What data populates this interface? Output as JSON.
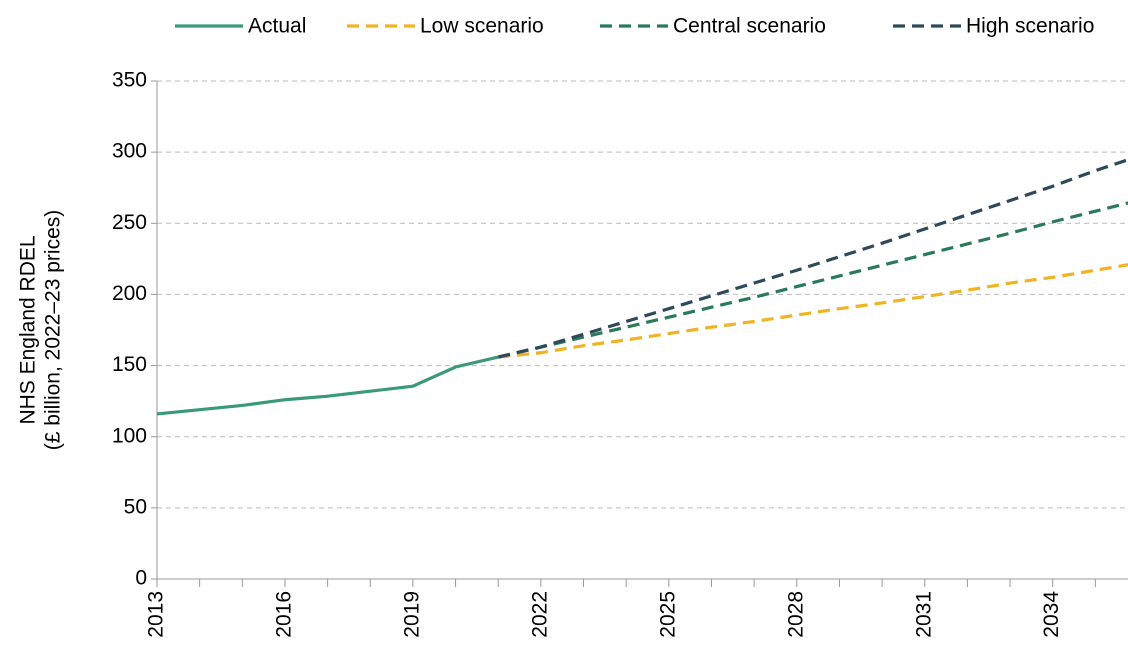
{
  "chart_data": {
    "type": "line",
    "y_axis_label": [
      "NHS England RDEL",
      "(£ billion, 2022–23 prices)"
    ],
    "x": [
      2013,
      2014,
      2015,
      2016,
      2017,
      2018,
      2019,
      2020,
      2021,
      2022,
      2023,
      2024,
      2025,
      2026,
      2027,
      2028,
      2029,
      2030,
      2031,
      2032,
      2033,
      2034,
      2035,
      2036
    ],
    "series": [
      {
        "name": "Actual",
        "color": "#3a9a78",
        "dash": false,
        "values": [
          116,
          119,
          122,
          126,
          128.5,
          132,
          135.5,
          149,
          156,
          null,
          null,
          null,
          null,
          null,
          null,
          null,
          null,
          null,
          null,
          null,
          null,
          null,
          null,
          null
        ]
      },
      {
        "name": "Low scenario",
        "color": "#f0b323",
        "dash": true,
        "values": [
          null,
          null,
          null,
          null,
          null,
          null,
          null,
          null,
          156,
          159,
          164,
          168,
          172.5,
          177,
          181,
          185.5,
          190,
          194,
          198.5,
          203,
          208,
          212,
          217,
          222
        ]
      },
      {
        "name": "Central scenario",
        "color": "#2a7a5a",
        "dash": true,
        "values": [
          null,
          null,
          null,
          null,
          null,
          null,
          null,
          null,
          156,
          163,
          170,
          177,
          184,
          191,
          198,
          205.5,
          213,
          220.5,
          228,
          235.5,
          243,
          251,
          258.5,
          266
        ]
      },
      {
        "name": "High scenario",
        "color": "#2e4a5a",
        "dash": true,
        "values": [
          null,
          null,
          null,
          null,
          null,
          null,
          null,
          null,
          156,
          163,
          172,
          181,
          190,
          199,
          208,
          217,
          226.5,
          236,
          246,
          256,
          266,
          276,
          287,
          297
        ]
      }
    ],
    "xlim": [
      2013,
      2036
    ],
    "xticks": [
      2013,
      2016,
      2019,
      2022,
      2025,
      2028,
      2031,
      2034
    ],
    "xminor_ticks": [
      2014,
      2015,
      2017,
      2018,
      2020,
      2021,
      2023,
      2024,
      2026,
      2027,
      2029,
      2030,
      2032,
      2033,
      2035
    ],
    "ylim": [
      0,
      350
    ],
    "yticks": [
      0,
      50,
      100,
      150,
      200,
      250,
      300,
      350
    ],
    "grid": true
  }
}
